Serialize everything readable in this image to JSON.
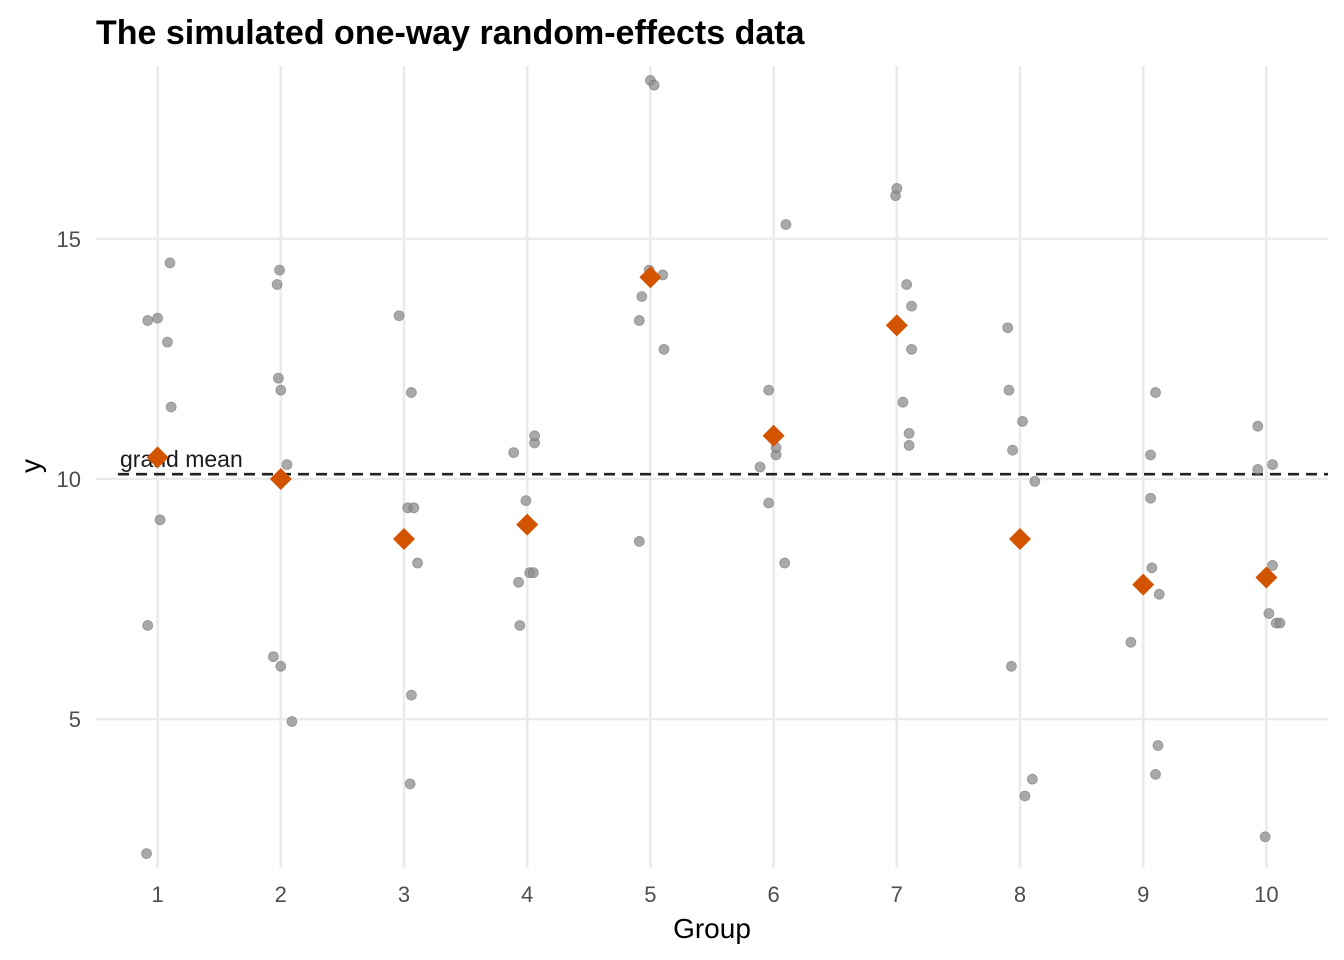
{
  "chart_data": {
    "type": "scatter",
    "title": "The simulated one-way random-effects data",
    "xlabel": "Group",
    "ylabel": "y",
    "categories": [
      "1",
      "2",
      "3",
      "4",
      "5",
      "6",
      "7",
      "8",
      "9",
      "10"
    ],
    "yticks": [
      {
        "value": 5,
        "label": "5"
      },
      {
        "value": 10,
        "label": "10"
      },
      {
        "value": 15,
        "label": "15"
      }
    ],
    "ylim": [
      1.9,
      18.6
    ],
    "xlim": [
      0.5,
      10.5
    ],
    "grid": true,
    "grand_mean": {
      "value": 10.1,
      "label": "grand mean"
    },
    "colors": {
      "points": "#8c8c8c",
      "group_means": "#d35400",
      "grand_mean_line": "#222222"
    },
    "series": [
      {
        "role": "observations",
        "points": [
          {
            "x": 0.91,
            "y": 2.2
          },
          {
            "x": 0.92,
            "y": 6.95
          },
          {
            "x": 1.02,
            "y": 9.15
          },
          {
            "x": 1.11,
            "y": 11.5
          },
          {
            "x": 1.08,
            "y": 12.85
          },
          {
            "x": 0.92,
            "y": 13.3
          },
          {
            "x": 1.0,
            "y": 13.35
          },
          {
            "x": 1.1,
            "y": 14.5
          },
          {
            "x": 2.09,
            "y": 4.95
          },
          {
            "x": 2.0,
            "y": 6.1
          },
          {
            "x": 1.94,
            "y": 6.3
          },
          {
            "x": 2.05,
            "y": 10.3
          },
          {
            "x": 2.0,
            "y": 11.85
          },
          {
            "x": 1.98,
            "y": 12.1
          },
          {
            "x": 1.97,
            "y": 14.05
          },
          {
            "x": 1.99,
            "y": 14.35
          },
          {
            "x": 3.05,
            "y": 3.65
          },
          {
            "x": 3.06,
            "y": 5.5
          },
          {
            "x": 3.11,
            "y": 8.25
          },
          {
            "x": 3.03,
            "y": 9.4
          },
          {
            "x": 3.08,
            "y": 9.4
          },
          {
            "x": 3.06,
            "y": 11.8
          },
          {
            "x": 2.96,
            "y": 13.4
          },
          {
            "x": 3.94,
            "y": 6.95
          },
          {
            "x": 3.93,
            "y": 7.85
          },
          {
            "x": 4.02,
            "y": 8.05
          },
          {
            "x": 4.05,
            "y": 8.05
          },
          {
            "x": 3.99,
            "y": 9.55
          },
          {
            "x": 3.89,
            "y": 10.55
          },
          {
            "x": 4.06,
            "y": 10.75
          },
          {
            "x": 4.06,
            "y": 10.9
          },
          {
            "x": 4.91,
            "y": 8.7
          },
          {
            "x": 4.91,
            "y": 13.3
          },
          {
            "x": 4.93,
            "y": 13.8
          },
          {
            "x": 4.99,
            "y": 14.35
          },
          {
            "x": 5.1,
            "y": 14.25
          },
          {
            "x": 5.11,
            "y": 12.7
          },
          {
            "x": 5.0,
            "y": 18.3
          },
          {
            "x": 5.03,
            "y": 18.2
          },
          {
            "x": 6.09,
            "y": 8.25
          },
          {
            "x": 5.96,
            "y": 9.5
          },
          {
            "x": 5.89,
            "y": 10.25
          },
          {
            "x": 6.02,
            "y": 10.5
          },
          {
            "x": 6.02,
            "y": 10.65
          },
          {
            "x": 5.96,
            "y": 11.85
          },
          {
            "x": 6.1,
            "y": 15.3
          },
          {
            "x": 7.1,
            "y": 10.7
          },
          {
            "x": 7.1,
            "y": 10.95
          },
          {
            "x": 7.05,
            "y": 11.6
          },
          {
            "x": 7.12,
            "y": 12.7
          },
          {
            "x": 7.12,
            "y": 13.6
          },
          {
            "x": 7.08,
            "y": 14.05
          },
          {
            "x": 6.99,
            "y": 15.9
          },
          {
            "x": 7.0,
            "y": 16.05
          },
          {
            "x": 8.04,
            "y": 3.4
          },
          {
            "x": 8.1,
            "y": 3.75
          },
          {
            "x": 7.93,
            "y": 6.1
          },
          {
            "x": 8.12,
            "y": 9.95
          },
          {
            "x": 7.94,
            "y": 10.6
          },
          {
            "x": 8.02,
            "y": 11.2
          },
          {
            "x": 7.91,
            "y": 11.85
          },
          {
            "x": 7.9,
            "y": 13.15
          },
          {
            "x": 9.1,
            "y": 3.85
          },
          {
            "x": 9.12,
            "y": 4.45
          },
          {
            "x": 8.9,
            "y": 6.6
          },
          {
            "x": 9.13,
            "y": 7.6
          },
          {
            "x": 9.07,
            "y": 8.15
          },
          {
            "x": 9.06,
            "y": 9.6
          },
          {
            "x": 9.06,
            "y": 10.5
          },
          {
            "x": 9.1,
            "y": 11.8
          },
          {
            "x": 9.99,
            "y": 2.55
          },
          {
            "x": 10.08,
            "y": 7.0
          },
          {
            "x": 10.11,
            "y": 7.0
          },
          {
            "x": 10.02,
            "y": 7.2
          },
          {
            "x": 10.05,
            "y": 8.2
          },
          {
            "x": 9.93,
            "y": 10.2
          },
          {
            "x": 10.05,
            "y": 10.3
          },
          {
            "x": 9.93,
            "y": 11.1
          }
        ]
      },
      {
        "role": "group_means",
        "points": [
          {
            "x": 1,
            "y": 10.45
          },
          {
            "x": 2,
            "y": 10.0
          },
          {
            "x": 3,
            "y": 8.75
          },
          {
            "x": 4,
            "y": 9.05
          },
          {
            "x": 5,
            "y": 14.2
          },
          {
            "x": 6,
            "y": 10.9
          },
          {
            "x": 7,
            "y": 13.2
          },
          {
            "x": 8,
            "y": 8.75
          },
          {
            "x": 9,
            "y": 7.8
          },
          {
            "x": 10,
            "y": 7.95
          }
        ]
      }
    ]
  }
}
